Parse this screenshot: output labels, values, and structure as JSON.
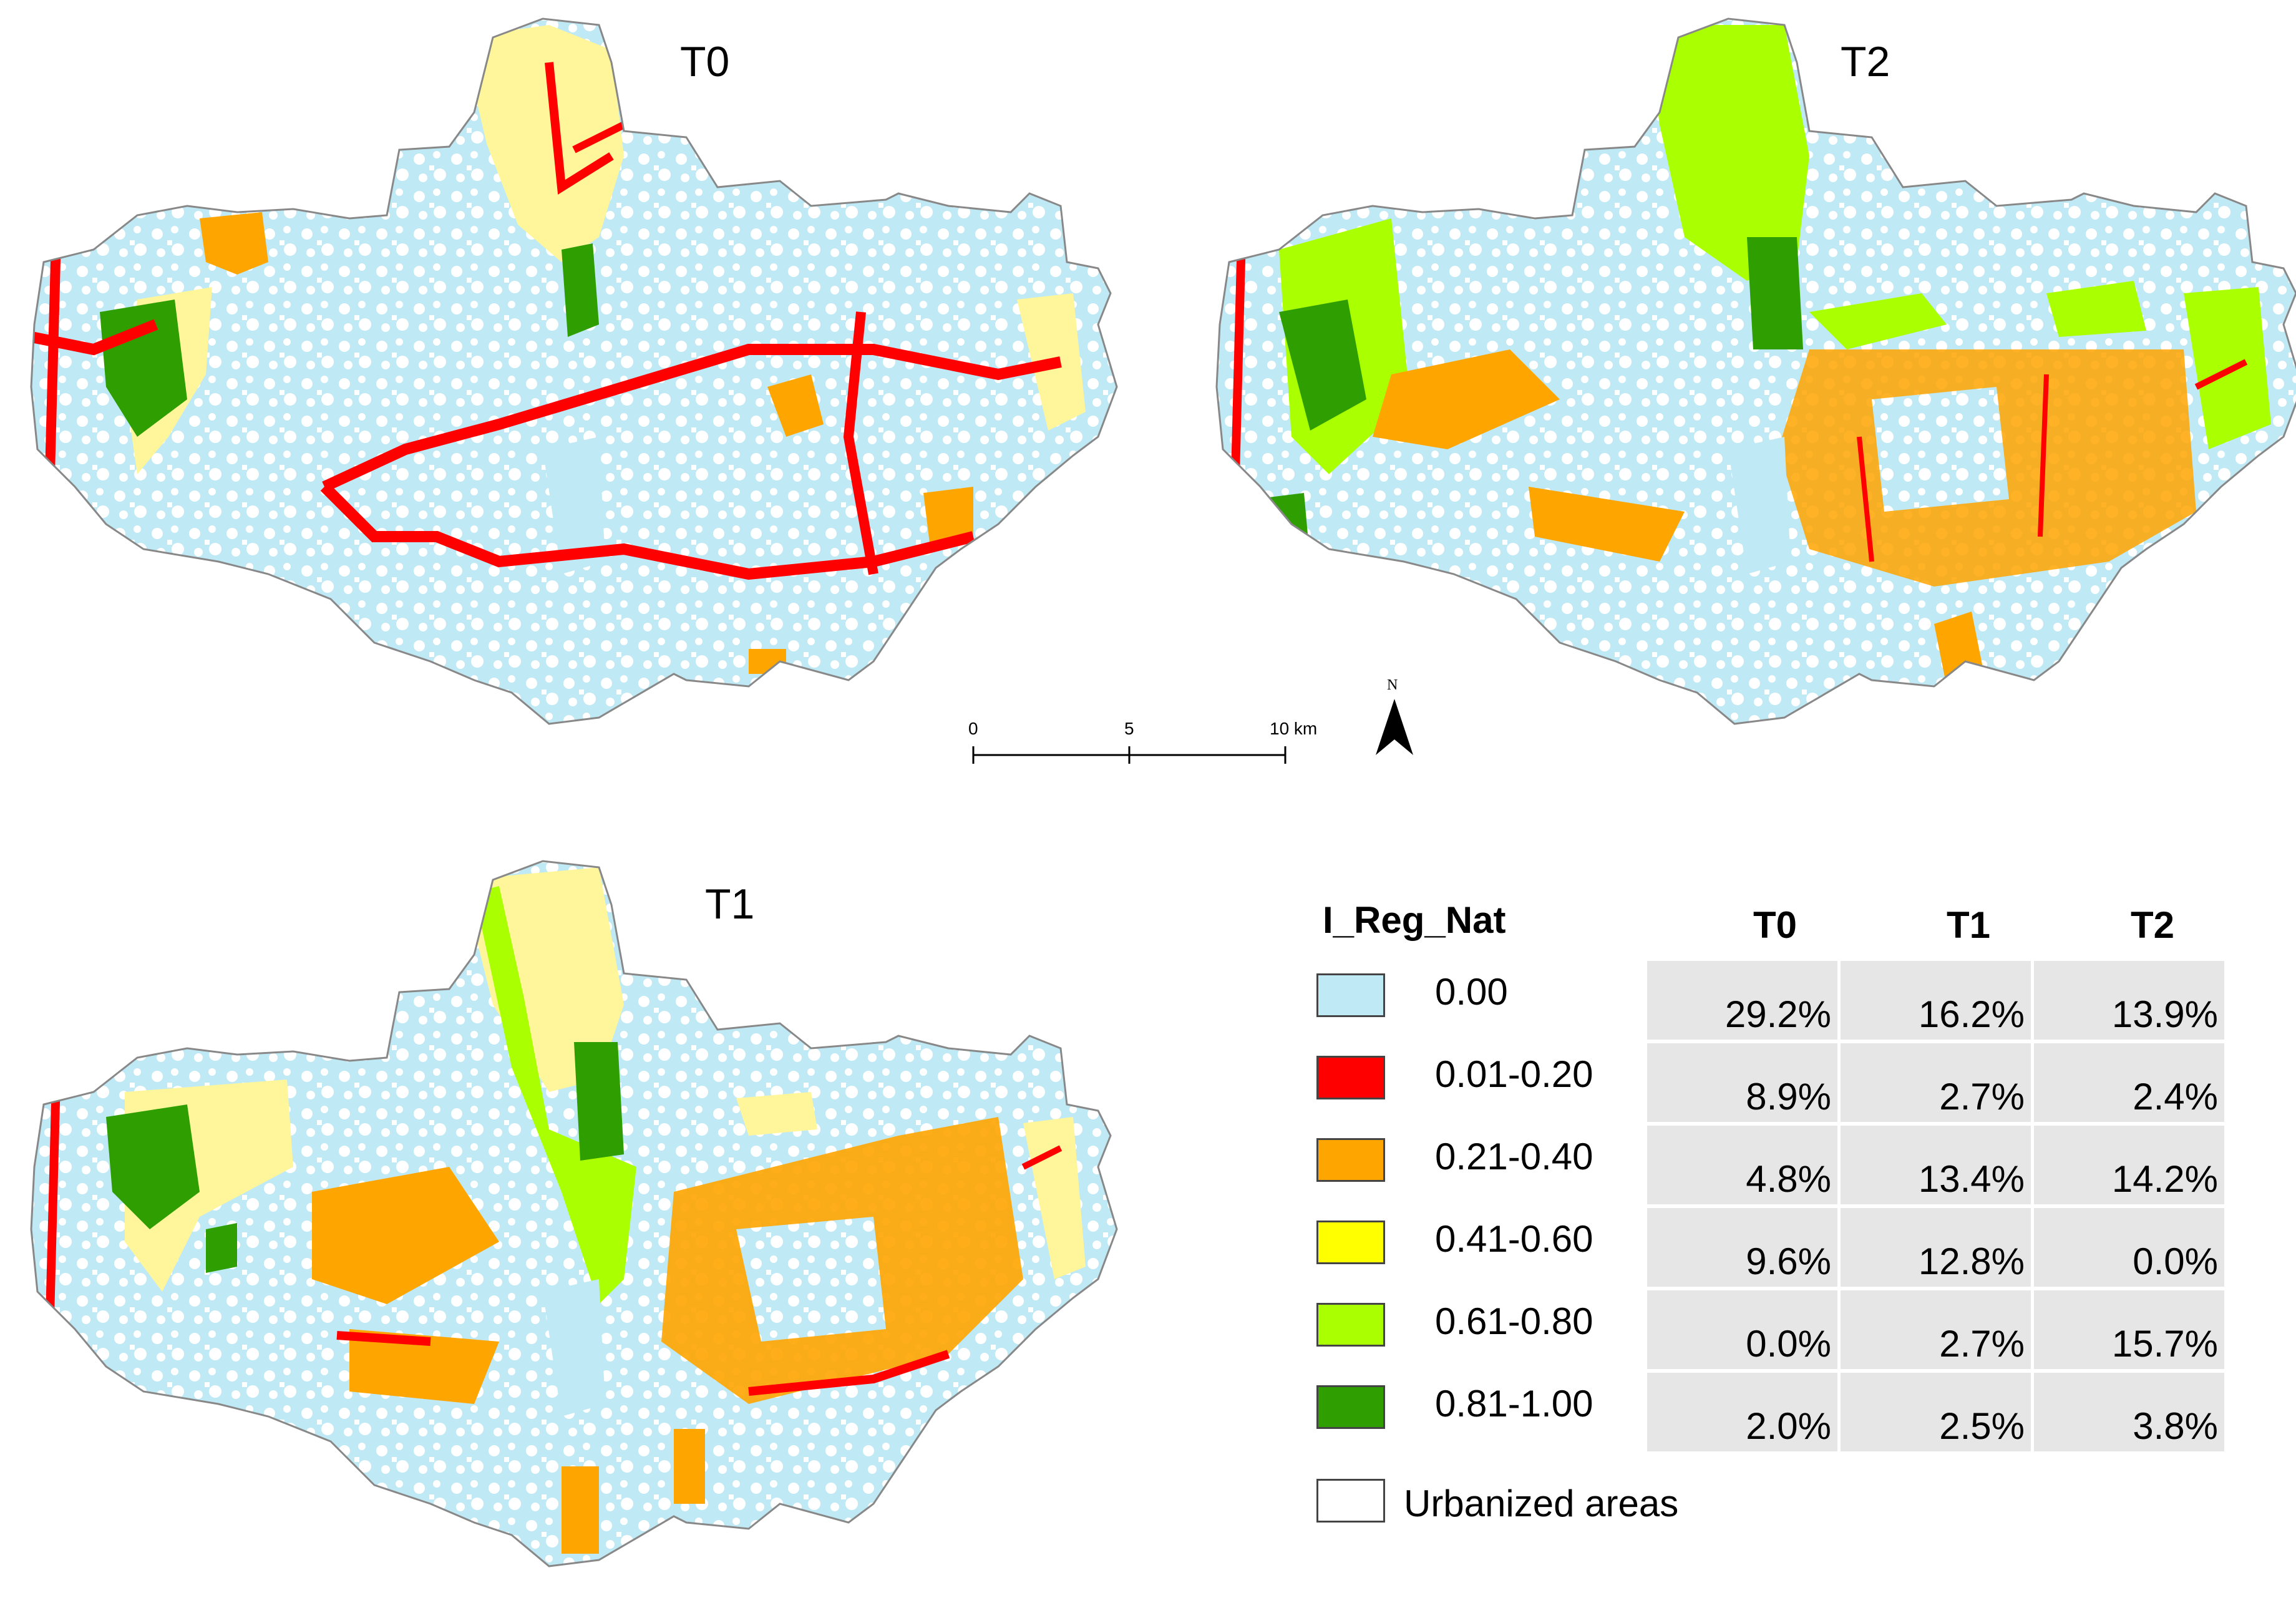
{
  "maps": [
    {
      "id": "t0",
      "title": "T0"
    },
    {
      "id": "t2",
      "title": "T2"
    },
    {
      "id": "t1",
      "title": "T1"
    }
  ],
  "colors": {
    "urban": "#ffffff",
    "c0": "#bfe9f5",
    "c1": "#ff0000",
    "c2": "#ffa500",
    "c3": "#ffff00",
    "c4": "#aaff00",
    "c5": "#2e9e00",
    "pale_yellow": "#fff59a"
  },
  "scale_bar": {
    "ticks": [
      "0",
      "5",
      "10 km"
    ]
  },
  "north_arrow": {
    "label": "N"
  },
  "legend": {
    "title": "I_Reg_Nat",
    "columns": [
      "T0",
      "T1",
      "T2"
    ],
    "rows": [
      {
        "label": "0.00",
        "color": "#bfe9f5",
        "values": [
          "29.2%",
          "16.2%",
          "13.9%"
        ]
      },
      {
        "label": "0.01-0.20",
        "color": "#ff0000",
        "values": [
          "8.9%",
          "2.7%",
          "2.4%"
        ]
      },
      {
        "label": "0.21-0.40",
        "color": "#ffa500",
        "values": [
          "4.8%",
          "13.4%",
          "14.2%"
        ]
      },
      {
        "label": "0.41-0.60",
        "color": "#ffff00",
        "values": [
          "9.6%",
          "12.8%",
          "0.0%"
        ]
      },
      {
        "label": "0.61-0.80",
        "color": "#aaff00",
        "values": [
          "0.0%",
          "2.7%",
          "15.7%"
        ]
      },
      {
        "label": "0.81-1.00",
        "color": "#2e9e00",
        "values": [
          "2.0%",
          "2.5%",
          "3.8%"
        ]
      }
    ],
    "urban_label": "Urbanized areas"
  }
}
